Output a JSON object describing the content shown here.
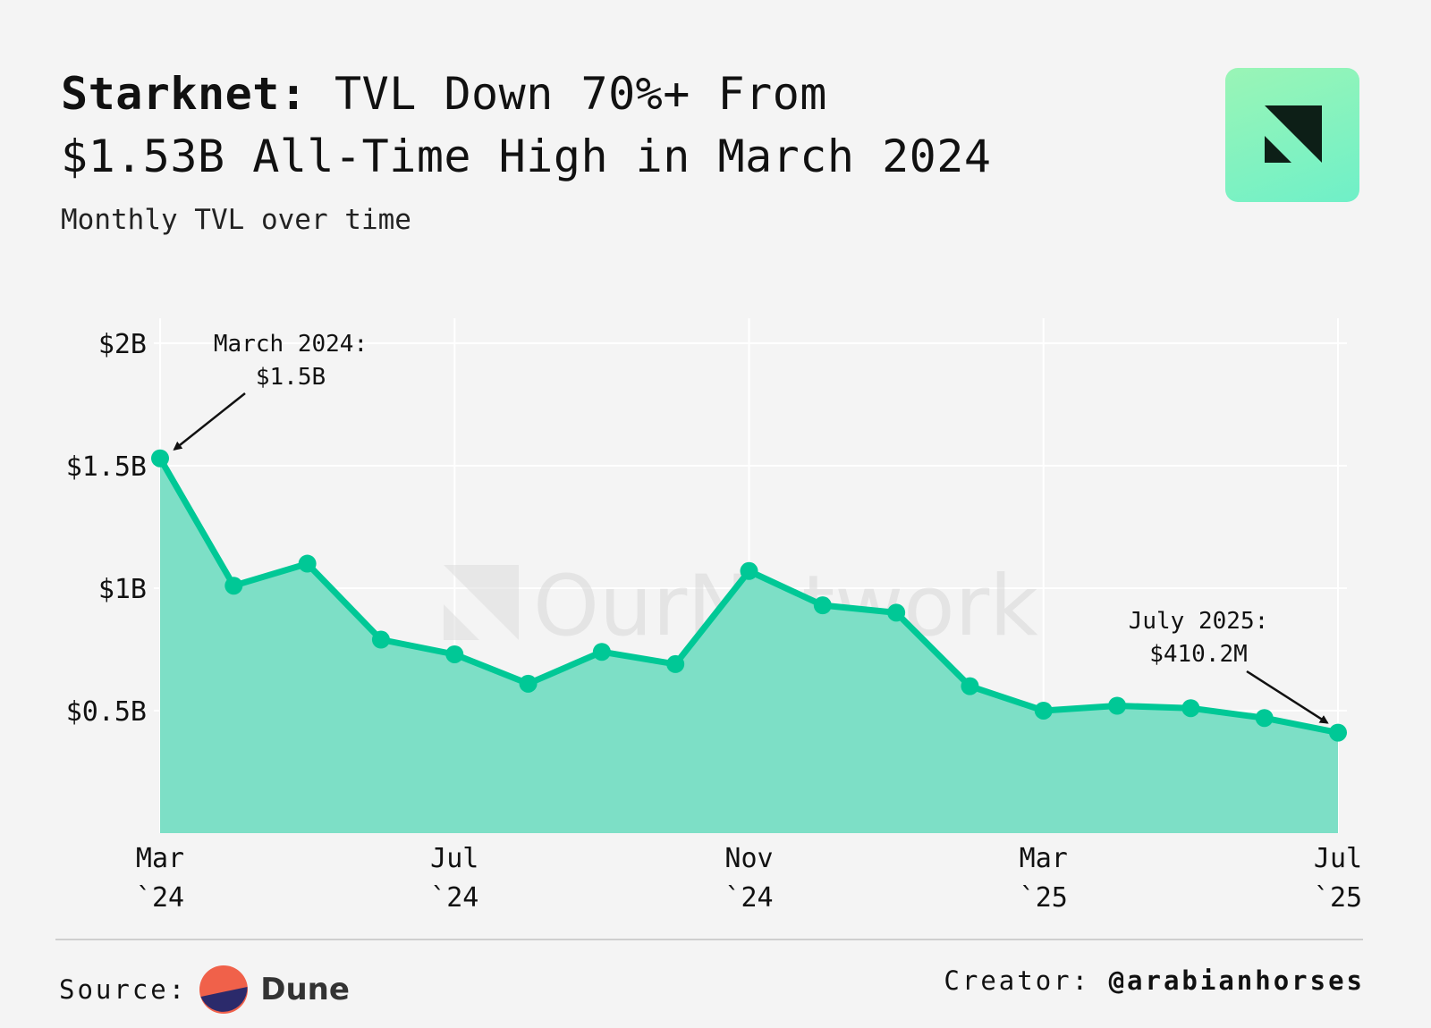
{
  "header": {
    "title_bold": "Starknet:",
    "title_rest_line1": "TVL Down 70%+ From",
    "title_line2": "$1.53B All-Time High in March 2024",
    "subtitle": "Monthly TVL over time"
  },
  "watermark": "OurNetwork",
  "footer": {
    "source_label": "Source:",
    "source_name": "Dune",
    "creator_label": "Creator:",
    "creator_handle": "@arabianhorses"
  },
  "colors": {
    "line": "#00c896",
    "area": "#7ddfc6",
    "grid": "#ffffff",
    "background": "#f4f4f4"
  },
  "chart_data": {
    "type": "area",
    "title": "Monthly TVL over time",
    "xlabel": "",
    "ylabel": "",
    "x": [
      "2024-03",
      "2024-04",
      "2024-05",
      "2024-06",
      "2024-07",
      "2024-08",
      "2024-09",
      "2024-10",
      "2024-11",
      "2024-12",
      "2025-01",
      "2025-02",
      "2025-03",
      "2025-04",
      "2025-05",
      "2025-06",
      "2025-07"
    ],
    "values": [
      1.53,
      1.01,
      1.1,
      0.79,
      0.73,
      0.61,
      0.74,
      0.69,
      1.07,
      0.93,
      0.9,
      0.6,
      0.5,
      0.52,
      0.51,
      0.47,
      0.4102
    ],
    "y_unit": "USD billions",
    "ylim": [
      0,
      2.08
    ],
    "y_ticks": [
      {
        "value": 2,
        "label": "$2B"
      },
      {
        "value": 1.5,
        "label": "$1.5B"
      },
      {
        "value": 1,
        "label": "$1B"
      },
      {
        "value": 0.5,
        "label": "$0.5B"
      }
    ],
    "x_ticks": [
      {
        "index": 0,
        "month": "Mar",
        "year": "`24"
      },
      {
        "index": 4,
        "month": "Jul",
        "year": "`24"
      },
      {
        "index": 8,
        "month": "Nov",
        "year": "`24"
      },
      {
        "index": 12,
        "month": "Mar",
        "year": "`25"
      },
      {
        "index": 16,
        "month": "Jul",
        "year": "`25"
      }
    ],
    "annotations": [
      {
        "index": 0,
        "line1": "March 2024:",
        "line2": "$1.5B"
      },
      {
        "index": 16,
        "line1": "July 2025:",
        "line2": "$410.2M"
      }
    ],
    "grid": true,
    "legend": "none"
  }
}
